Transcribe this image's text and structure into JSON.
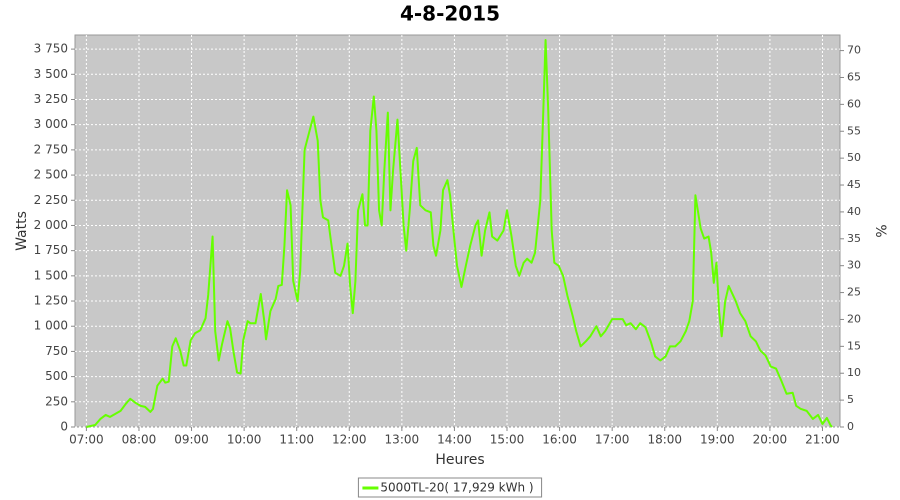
{
  "chart_data": {
    "type": "line",
    "title": "4-8-2015",
    "x_label": "Heures",
    "y_label": "Watts",
    "y2_label": "%",
    "x": [
      "07:00",
      "07:10",
      "07:16",
      "07:22",
      "07:27",
      "07:33",
      "07:39",
      "07:45",
      "07:50",
      "07:56",
      "08:02",
      "08:07",
      "08:13",
      "08:16",
      "08:21",
      "08:27",
      "08:30",
      "08:34",
      "08:38",
      "08:42",
      "08:47",
      "08:51",
      "08:54",
      "08:59",
      "09:04",
      "09:10",
      "09:16",
      "09:19",
      "09:24",
      "09:27",
      "09:31",
      "09:35",
      "09:41",
      "09:44",
      "09:48",
      "09:52",
      "09:56",
      "09:59",
      "10:04",
      "10:07",
      "10:13",
      "10:19",
      "10:23",
      "10:25",
      "10:30",
      "10:36",
      "10:39",
      "10:43",
      "10:46",
      "10:49",
      "10:53",
      "10:56",
      "11:01",
      "11:04",
      "11:09",
      "11:15",
      "11:19",
      "11:24",
      "11:27",
      "11:30",
      "11:36",
      "11:39",
      "11:44",
      "11:50",
      "11:54",
      "11:58",
      "12:01",
      "12:04",
      "12:07",
      "12:10",
      "12:15",
      "12:18",
      "12:21",
      "12:24",
      "12:28",
      "12:31",
      "12:34",
      "12:37",
      "12:40",
      "12:44",
      "12:47",
      "12:50",
      "12:55",
      "12:58",
      "13:02",
      "13:05",
      "13:09",
      "13:13",
      "13:17",
      "13:21",
      "13:27",
      "13:33",
      "13:36",
      "13:39",
      "13:44",
      "13:47",
      "13:52",
      "13:55",
      "14:00",
      "14:03",
      "14:08",
      "14:13",
      "14:18",
      "14:24",
      "14:27",
      "14:31",
      "14:35",
      "14:40",
      "14:43",
      "14:49",
      "14:56",
      "15:00",
      "15:05",
      "15:10",
      "15:14",
      "15:19",
      "15:23",
      "15:28",
      "15:32",
      "15:38",
      "15:42",
      "15:44",
      "15:47",
      "15:51",
      "15:54",
      "15:59",
      "16:04",
      "16:09",
      "16:15",
      "16:19",
      "16:24",
      "16:30",
      "16:35",
      "16:42",
      "16:47",
      "16:52",
      "17:00",
      "17:06",
      "17:12",
      "17:16",
      "17:21",
      "17:27",
      "17:32",
      "17:38",
      "17:44",
      "17:49",
      "17:55",
      "18:01",
      "18:06",
      "18:12",
      "18:18",
      "18:24",
      "18:28",
      "18:32",
      "18:35",
      "18:41",
      "18:45",
      "18:50",
      "18:53",
      "18:56",
      "18:59",
      "19:02",
      "19:05",
      "19:09",
      "19:13",
      "19:21",
      "19:26",
      "19:32",
      "19:38",
      "19:44",
      "19:49",
      "19:55",
      "20:01",
      "20:07",
      "20:13",
      "20:19",
      "20:26",
      "20:30",
      "20:35",
      "20:42",
      "20:49",
      "20:55",
      "21:00",
      "21:05",
      "21:09",
      "21:11"
    ],
    "series": [
      {
        "name": "5000TL-20( 17,929 kWh )",
        "color": "#66ff00",
        "values": [
          0,
          20,
          80,
          120,
          100,
          130,
          160,
          230,
          280,
          240,
          210,
          200,
          150,
          180,
          410,
          480,
          440,
          450,
          800,
          880,
          760,
          610,
          610,
          860,
          930,
          960,
          1080,
          1310,
          1890,
          950,
          660,
          830,
          1050,
          980,
          740,
          540,
          530,
          860,
          1050,
          1030,
          1030,
          1320,
          1050,
          870,
          1150,
          1270,
          1400,
          1410,
          1800,
          2350,
          2200,
          1450,
          1250,
          1550,
          2750,
          2950,
          3080,
          2840,
          2250,
          2080,
          2050,
          1850,
          1530,
          1500,
          1600,
          1820,
          1400,
          1130,
          1450,
          2150,
          2310,
          2000,
          2000,
          2940,
          3280,
          2940,
          2150,
          2000,
          2550,
          3120,
          2150,
          2550,
          3050,
          2600,
          2000,
          1750,
          2150,
          2640,
          2770,
          2200,
          2150,
          2130,
          1800,
          1700,
          1950,
          2350,
          2450,
          2300,
          1850,
          1600,
          1390,
          1600,
          1800,
          2000,
          2050,
          1700,
          1950,
          2130,
          1890,
          1850,
          1950,
          2150,
          1900,
          1600,
          1500,
          1630,
          1670,
          1630,
          1730,
          2250,
          3290,
          3840,
          3150,
          1950,
          1630,
          1600,
          1500,
          1300,
          1100,
          950,
          800,
          850,
          900,
          1000,
          900,
          950,
          1070,
          1070,
          1070,
          1010,
          1030,
          970,
          1030,
          990,
          850,
          700,
          660,
          700,
          800,
          800,
          850,
          950,
          1050,
          1250,
          2300,
          1970,
          1870,
          1890,
          1730,
          1430,
          1630,
          1150,
          900,
          1250,
          1400,
          1250,
          1130,
          1050,
          900,
          850,
          760,
          710,
          600,
          580,
          460,
          330,
          340,
          210,
          180,
          160,
          80,
          120,
          30,
          90,
          20,
          0
        ]
      }
    ],
    "xlim": [
      "06:47",
      "21:20"
    ],
    "xticks": [
      "07:00",
      "08:00",
      "09:00",
      "10:00",
      "11:00",
      "12:00",
      "13:00",
      "14:00",
      "15:00",
      "16:00",
      "17:00",
      "18:00",
      "19:00",
      "20:00",
      "21:00"
    ],
    "ylim": [
      0,
      3890
    ],
    "yticks": [
      0,
      250,
      500,
      750,
      {
        "value": 1000,
        "label": "1 000"
      },
      {
        "value": 1250,
        "label": "1 250"
      },
      {
        "value": 1500,
        "label": "1 500"
      },
      {
        "value": 1750,
        "label": "1 750"
      },
      {
        "value": 2000,
        "label": "2 000"
      },
      {
        "value": 2250,
        "label": "2 250"
      },
      {
        "value": 2500,
        "label": "2 500"
      },
      {
        "value": 2750,
        "label": "2 750"
      },
      {
        "value": 3000,
        "label": "3 000"
      },
      {
        "value": 3250,
        "label": "3 250"
      },
      {
        "value": 3500,
        "label": "3 500"
      },
      {
        "value": 3750,
        "label": "3 750"
      }
    ],
    "y2lim": [
      0,
      72.9
    ],
    "y2ticks": [
      0,
      5,
      10,
      15,
      20,
      25,
      30,
      35,
      40,
      45,
      50,
      55,
      60,
      65,
      70
    ],
    "grid": true,
    "background": "#c8c8c8",
    "legend": "bottom"
  }
}
